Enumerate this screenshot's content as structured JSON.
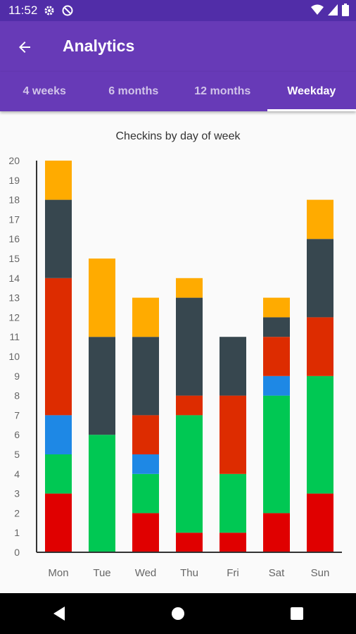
{
  "status_bar": {
    "time": "11:52"
  },
  "app_bar": {
    "title": "Analytics"
  },
  "tabs": [
    {
      "label": "4 weeks",
      "active": false
    },
    {
      "label": "6 months",
      "active": false
    },
    {
      "label": "12 months",
      "active": false
    },
    {
      "label": "Weekday",
      "active": true
    }
  ],
  "chart_data": {
    "type": "bar",
    "stacked": true,
    "title": "Checkins by day of week",
    "categories": [
      "Mon",
      "Tue",
      "Wed",
      "Thu",
      "Fri",
      "Sat",
      "Sun"
    ],
    "ylim": [
      0,
      20
    ],
    "yticks": [
      0,
      1,
      2,
      3,
      4,
      5,
      6,
      7,
      8,
      9,
      10,
      11,
      12,
      13,
      14,
      15,
      16,
      17,
      18,
      19,
      20
    ],
    "grid": false,
    "series": [
      {
        "color": "#e00000",
        "values": [
          3,
          0,
          2,
          1,
          1,
          2,
          3
        ]
      },
      {
        "color": "#00c853",
        "values": [
          2,
          6,
          2,
          6,
          3,
          6,
          6
        ]
      },
      {
        "color": "#1e88e5",
        "values": [
          2,
          0,
          1,
          0,
          0,
          1,
          0
        ]
      },
      {
        "color": "#dd2c00",
        "values": [
          7,
          0,
          2,
          1,
          4,
          2,
          3
        ]
      },
      {
        "color": "#37474f",
        "values": [
          4,
          5,
          4,
          5,
          3,
          1,
          4
        ]
      },
      {
        "color": "#ffab00",
        "values": [
          2,
          4,
          2,
          1,
          0,
          1,
          2
        ]
      }
    ]
  },
  "colors": {
    "primary": "#673ab7",
    "primary_dark": "#512da8"
  }
}
